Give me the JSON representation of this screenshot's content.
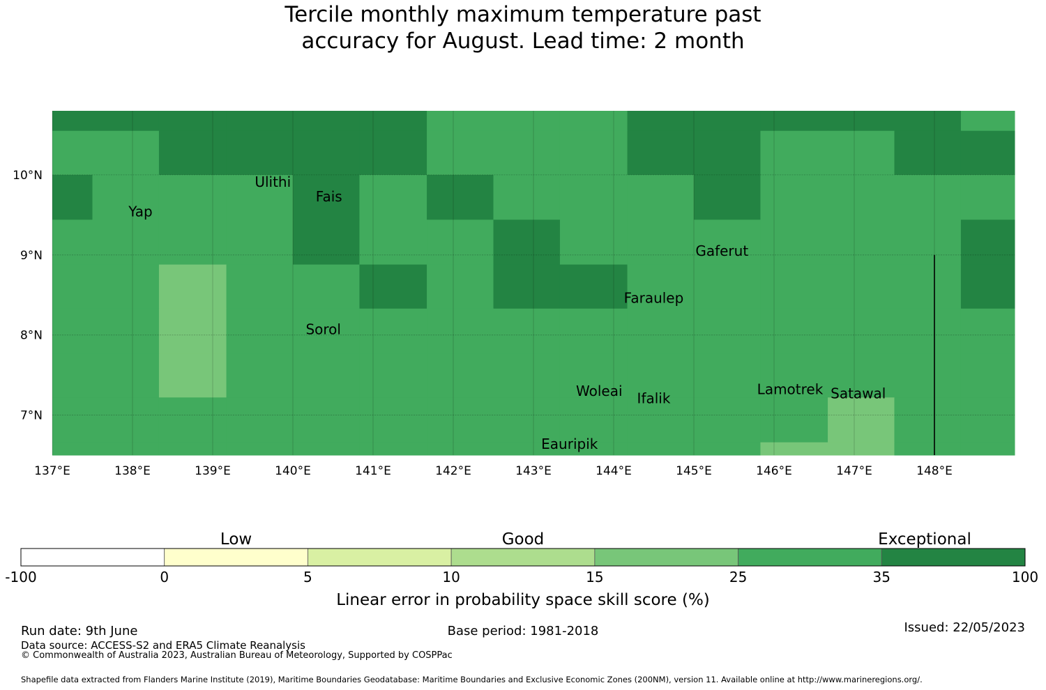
{
  "title": {
    "line1": "Tercile monthly maximum temperature past",
    "line2": "accuracy for August. Lead time: 2 month"
  },
  "map": {
    "lon_range": [
      137.0,
      149.0
    ],
    "lat_range": [
      6.5,
      10.8
    ],
    "lon_ticks": [
      {
        "v": 137,
        "label": "137°E"
      },
      {
        "v": 138,
        "label": "138°E"
      },
      {
        "v": 139,
        "label": "139°E"
      },
      {
        "v": 140,
        "label": "140°E"
      },
      {
        "v": 141,
        "label": "141°E"
      },
      {
        "v": 142,
        "label": "142°E"
      },
      {
        "v": 143,
        "label": "143°E"
      },
      {
        "v": 144,
        "label": "144°E"
      },
      {
        "v": 145,
        "label": "145°E"
      },
      {
        "v": 146,
        "label": "146°E"
      },
      {
        "v": 147,
        "label": "147°E"
      },
      {
        "v": 148,
        "label": "148°E"
      }
    ],
    "lat_ticks": [
      {
        "v": 10,
        "label": "10°N"
      },
      {
        "v": 9,
        "label": "9°N"
      },
      {
        "v": 8,
        "label": "8°N"
      },
      {
        "v": 7,
        "label": "7°N"
      }
    ],
    "grid_col_lons": [
      137.0,
      137.5,
      138.33,
      139.17,
      140.0,
      140.83,
      141.67,
      142.5,
      143.33,
      144.17,
      145.0,
      145.83,
      146.67,
      147.5,
      148.33,
      149.0
    ],
    "grid_row_lats": [
      10.8,
      10.55,
      10.0,
      9.44,
      8.88,
      8.33,
      7.77,
      7.22,
      6.66,
      6.5
    ],
    "cell_classes": [
      [
        6,
        6,
        6,
        6,
        6,
        6,
        5,
        5,
        5,
        6,
        6,
        6,
        6,
        6,
        5
      ],
      [
        5,
        5,
        6,
        6,
        6,
        6,
        5,
        5,
        5,
        6,
        6,
        5,
        5,
        6,
        6
      ],
      [
        6,
        5,
        5,
        5,
        6,
        5,
        6,
        5,
        5,
        5,
        6,
        5,
        5,
        5,
        5
      ],
      [
        5,
        5,
        5,
        5,
        6,
        5,
        5,
        6,
        5,
        5,
        5,
        5,
        5,
        5,
        6
      ],
      [
        5,
        5,
        4,
        5,
        5,
        6,
        5,
        6,
        6,
        5,
        5,
        5,
        5,
        5,
        6
      ],
      [
        5,
        5,
        4,
        5,
        5,
        5,
        5,
        5,
        5,
        5,
        5,
        5,
        5,
        5,
        5
      ],
      [
        5,
        5,
        4,
        5,
        5,
        5,
        5,
        5,
        5,
        5,
        5,
        5,
        5,
        5,
        5
      ],
      [
        5,
        5,
        5,
        5,
        5,
        5,
        5,
        5,
        5,
        5,
        5,
        5,
        4,
        5,
        5
      ],
      [
        5,
        5,
        5,
        5,
        5,
        5,
        5,
        5,
        5,
        5,
        5,
        4,
        4,
        5,
        5
      ]
    ],
    "boundary_line_lon": 148.0,
    "places": [
      {
        "name": "Ulithi",
        "lon": 139.75,
        "lat": 9.85
      },
      {
        "name": "Yap",
        "lon": 138.1,
        "lat": 9.48
      },
      {
        "name": "Fais",
        "lon": 140.45,
        "lat": 9.67
      },
      {
        "name": "Gaferut",
        "lon": 145.35,
        "lat": 8.99
      },
      {
        "name": "Faraulep",
        "lon": 144.5,
        "lat": 8.4
      },
      {
        "name": "Sorol",
        "lon": 140.38,
        "lat": 8.01
      },
      {
        "name": "Woleai",
        "lon": 143.82,
        "lat": 7.24
      },
      {
        "name": "Ifalik",
        "lon": 144.5,
        "lat": 7.15
      },
      {
        "name": "Lamotrek",
        "lon": 146.2,
        "lat": 7.26
      },
      {
        "name": "Satawal",
        "lon": 147.05,
        "lat": 7.21
      },
      {
        "name": "Eauripik",
        "lon": 143.45,
        "lat": 6.58
      }
    ]
  },
  "legend": {
    "category_labels": [
      {
        "text": "Low",
        "at": 1.5
      },
      {
        "text": "Good",
        "at": 3.5
      },
      {
        "text": "Exceptional",
        "at": 6.3
      }
    ],
    "bins": [
      {
        "from": "-100",
        "to": "0",
        "color": "#ffffff"
      },
      {
        "from": "0",
        "to": "5",
        "color": "#ffffcc"
      },
      {
        "from": "5",
        "to": "10",
        "color": "#d9f0a3"
      },
      {
        "from": "10",
        "to": "15",
        "color": "#addd8e"
      },
      {
        "from": "15",
        "to": "25",
        "color": "#78c679"
      },
      {
        "from": "25",
        "to": "35",
        "color": "#41ab5d"
      },
      {
        "from": "35",
        "to": "100",
        "color": "#238443"
      }
    ],
    "tick_labels": [
      "-100",
      "0",
      "5",
      "10",
      "15",
      "25",
      "35",
      "100"
    ],
    "axis_title": "Linear error in probability space skill score (%)"
  },
  "footer": {
    "run_date": "Run date: 9th June",
    "base_period": "Base period: 1981-2018",
    "issued": "Issued: 22/05/2023",
    "data_source": "Data source: ACCESS-S2 and ERA5 Climate Reanalysis",
    "copyright": "© Commonwealth of Australia 2023, Australian Bureau of Meteorology, Supported by COSPPac",
    "shapefile": "Shapefile data extracted from Flanders Marine Institute (2019), Maritime Boundaries Geodatabase: Maritime Boundaries and Exclusive Economic Zones (200NM), version 11. Available online at http://www.marineregions.org/."
  }
}
